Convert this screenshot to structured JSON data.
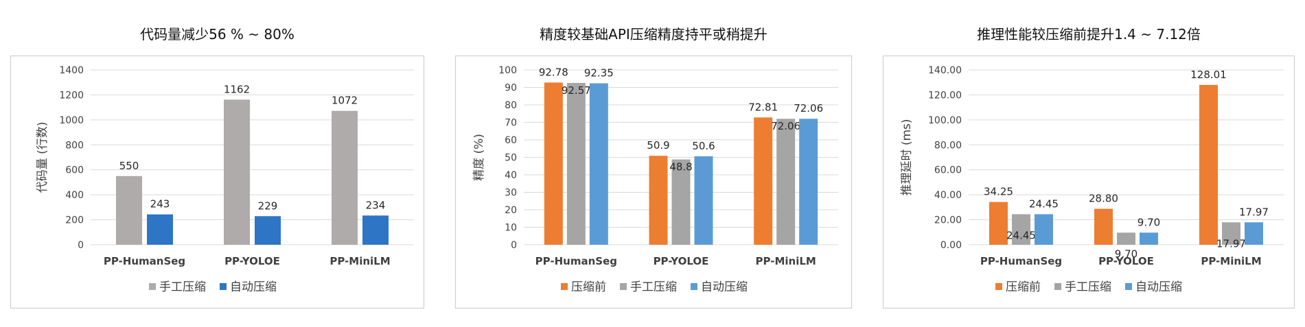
{
  "chart_data": [
    {
      "type": "bar",
      "title": "代码量减少56 % ~ 80%",
      "ylabel": "代码量 (行数)",
      "xlabel": "",
      "categories": [
        "PP-HumanSeg",
        "PP-YOLOE",
        "PP-MiniLM"
      ],
      "ylim": [
        0,
        1400
      ],
      "yticks": [
        "0",
        "200",
        "400",
        "600",
        "800",
        "1000",
        "1200",
        "1400"
      ],
      "grid": true,
      "legend_position": "bottom",
      "series": [
        {
          "name": "手工压缩",
          "color": "#afabab",
          "values": [
            550,
            1162,
            1072
          ],
          "labels": [
            "550",
            "1162",
            "1072"
          ]
        },
        {
          "name": "自动压缩",
          "color": "#2e75c6",
          "values": [
            243,
            229,
            234
          ],
          "labels": [
            "243",
            "229",
            "234"
          ]
        }
      ]
    },
    {
      "type": "bar",
      "title": "精度较基础API压缩精度持平或稍提升",
      "ylabel": "精度 (%)",
      "xlabel": "",
      "categories": [
        "PP-HumanSeg",
        "PP-YOLOE",
        "PP-MiniLM"
      ],
      "ylim": [
        0,
        100
      ],
      "yticks": [
        "0",
        "10",
        "20",
        "30",
        "40",
        "50",
        "60",
        "70",
        "80",
        "90",
        "100"
      ],
      "grid": true,
      "legend_position": "bottom",
      "series": [
        {
          "name": "压缩前",
          "color": "#ed7d31",
          "values": [
            92.78,
            50.9,
            72.81
          ],
          "labels": [
            "92.78",
            "50.9",
            "72.81"
          ]
        },
        {
          "name": "手工压缩",
          "color": "#a5a5a5",
          "values": [
            92.57,
            48.8,
            72.06
          ],
          "labels": [
            "92.57",
            "48.8",
            "72.06"
          ]
        },
        {
          "name": "自动压缩",
          "color": "#5b9bd5",
          "values": [
            92.35,
            50.6,
            72.06
          ],
          "labels": [
            "92.35",
            "50.6",
            "72.06"
          ]
        }
      ]
    },
    {
      "type": "bar",
      "title": "推理性能较压缩前提升1.4 ~ 7.12倍",
      "ylabel": "推理延时 (ms)",
      "xlabel": "",
      "categories": [
        "PP-HumanSeg",
        "PP-YOLOE",
        "PP-MiniLM"
      ],
      "ylim": [
        0,
        140
      ],
      "yticks": [
        "0.00",
        "20.00",
        "40.00",
        "60.00",
        "80.00",
        "100.00",
        "120.00",
        "140.00"
      ],
      "grid": true,
      "legend_position": "bottom",
      "series": [
        {
          "name": "压缩前",
          "color": "#ed7d31",
          "values": [
            34.25,
            28.8,
            128.01
          ],
          "labels": [
            "34.25",
            "28.80",
            "128.01"
          ]
        },
        {
          "name": "手工压缩",
          "color": "#a5a5a5",
          "values": [
            24.45,
            9.7,
            17.97
          ],
          "labels": [
            "24.45",
            "9.70",
            "17.97"
          ]
        },
        {
          "name": "自动压缩",
          "color": "#5b9bd5",
          "values": [
            24.45,
            9.7,
            17.97
          ],
          "labels": [
            "24.45",
            "9.70",
            "17.97"
          ]
        }
      ]
    }
  ]
}
